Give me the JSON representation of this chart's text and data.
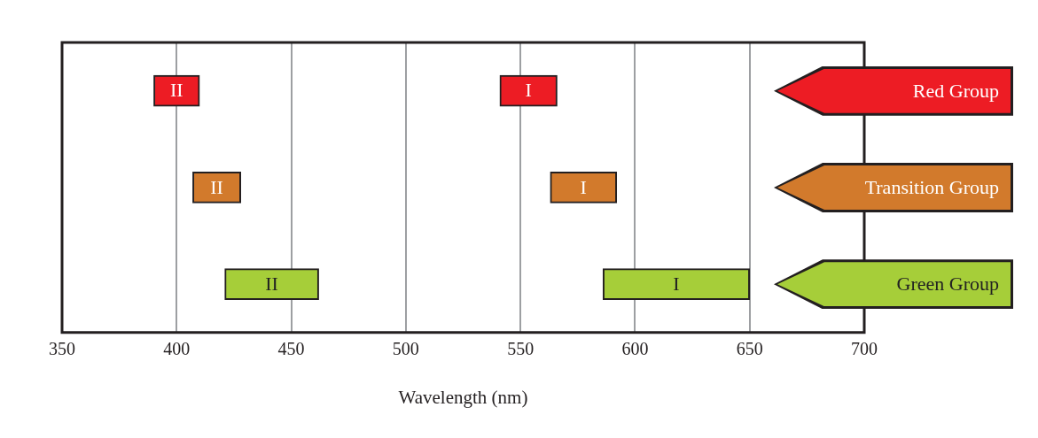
{
  "chart_data": {
    "type": "bar",
    "orientation": "horizontal",
    "xlabel": "Wavelength (nm)",
    "categories": [
      "Red Group",
      "Transition Group",
      "Green Group"
    ],
    "series": [
      {
        "name": "II",
        "colors": [
          "#ed1c24",
          "#d27a2c",
          "#a6ce39"
        ],
        "base": [
          390,
          407,
          421
        ],
        "values": [
          20,
          21,
          41
        ]
      },
      {
        "name": "I",
        "colors": [
          "#ed1c24",
          "#d27a2c",
          "#a6ce39"
        ],
        "base": [
          541,
          563,
          586
        ],
        "values": [
          25,
          29,
          64
        ]
      }
    ],
    "xlim": [
      350,
      700
    ],
    "xticks": [
      350,
      400,
      450,
      500,
      550,
      600,
      650,
      700
    ],
    "grid": "x",
    "legend": false
  }
}
